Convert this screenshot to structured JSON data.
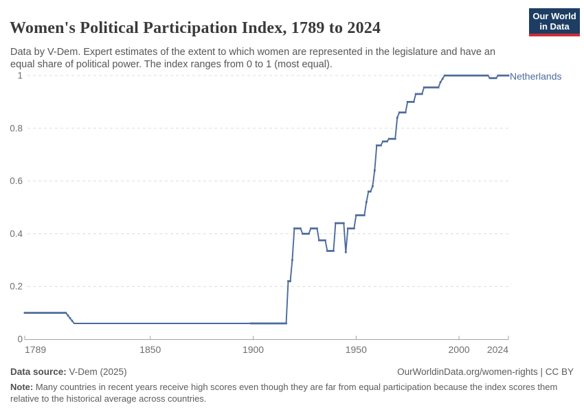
{
  "header": {
    "title": "Women's Political Participation Index, 1789 to 2024",
    "subtitle": "Data by V-Dem. Expert estimates of the extent to which women are represented in the legislature and have an equal share of political power. The index ranges from 0 to 1 (most equal).",
    "logo": {
      "line1": "Our World",
      "line2": "in Data",
      "bg_color": "#1d3d63",
      "stripe_color": "#d12b34"
    }
  },
  "chart_data": {
    "type": "line",
    "title": "Women's Political Participation Index, 1789 to 2024",
    "xlabel": "",
    "ylabel": "",
    "xlim": [
      1789,
      2024
    ],
    "ylim": [
      0,
      1
    ],
    "x_ticks": [
      1789,
      1850,
      1900,
      1950,
      2000,
      2024
    ],
    "y_ticks": [
      0,
      0.2,
      0.4,
      0.6,
      0.8,
      1
    ],
    "grid": "horizontal-dashed",
    "legend_position": "end-of-line-label",
    "series": [
      {
        "name": "Netherlands",
        "color": "#4c6a9c",
        "breakpoints": [
          [
            1789,
            0.1
          ],
          [
            1809,
            0.1
          ],
          [
            1813,
            0.06
          ],
          [
            1916,
            0.06
          ],
          [
            1917,
            0.22
          ],
          [
            1918,
            0.22
          ],
          [
            1919,
            0.3
          ],
          [
            1920,
            0.42
          ],
          [
            1923,
            0.42
          ],
          [
            1924,
            0.4
          ],
          [
            1927,
            0.4
          ],
          [
            1928,
            0.42
          ],
          [
            1931,
            0.42
          ],
          [
            1932,
            0.375
          ],
          [
            1935,
            0.375
          ],
          [
            1936,
            0.335
          ],
          [
            1939,
            0.335
          ],
          [
            1940,
            0.44
          ],
          [
            1944,
            0.44
          ],
          [
            1945,
            0.33
          ],
          [
            1946,
            0.42
          ],
          [
            1949,
            0.42
          ],
          [
            1950,
            0.47
          ],
          [
            1954,
            0.47
          ],
          [
            1955,
            0.52
          ],
          [
            1956,
            0.56
          ],
          [
            1957,
            0.56
          ],
          [
            1958,
            0.58
          ],
          [
            1959,
            0.64
          ],
          [
            1960,
            0.735
          ],
          [
            1962,
            0.735
          ],
          [
            1963,
            0.75
          ],
          [
            1965,
            0.75
          ],
          [
            1966,
            0.76
          ],
          [
            1969,
            0.76
          ],
          [
            1970,
            0.84
          ],
          [
            1971,
            0.86
          ],
          [
            1974,
            0.86
          ],
          [
            1975,
            0.9
          ],
          [
            1978,
            0.9
          ],
          [
            1979,
            0.93
          ],
          [
            1982,
            0.93
          ],
          [
            1983,
            0.955
          ],
          [
            1990,
            0.955
          ],
          [
            1991,
            0.975
          ],
          [
            1993,
            1.0
          ],
          [
            2014,
            1.0
          ],
          [
            2015,
            0.99
          ],
          [
            2018,
            0.99
          ],
          [
            2019,
            1.0
          ],
          [
            2024,
            1.0
          ]
        ],
        "marker_year_ranges": [
          [
            1789,
            1812
          ],
          [
            1899,
            2024
          ]
        ]
      }
    ]
  },
  "layout_colors": {
    "gridline": "#dcdcdc",
    "axis": "#a3a3a3",
    "tick_label": "#6e6e6e"
  },
  "footer": {
    "source_label": "Data source:",
    "source_value": " V-Dem (2025)",
    "credit": "OurWorldinData.org/women-rights | CC BY",
    "note_label": "Note:",
    "note_value": " Many countries in recent years receive high scores even though they are far from equal participation because the index scores them relative to the historical average across countries."
  }
}
